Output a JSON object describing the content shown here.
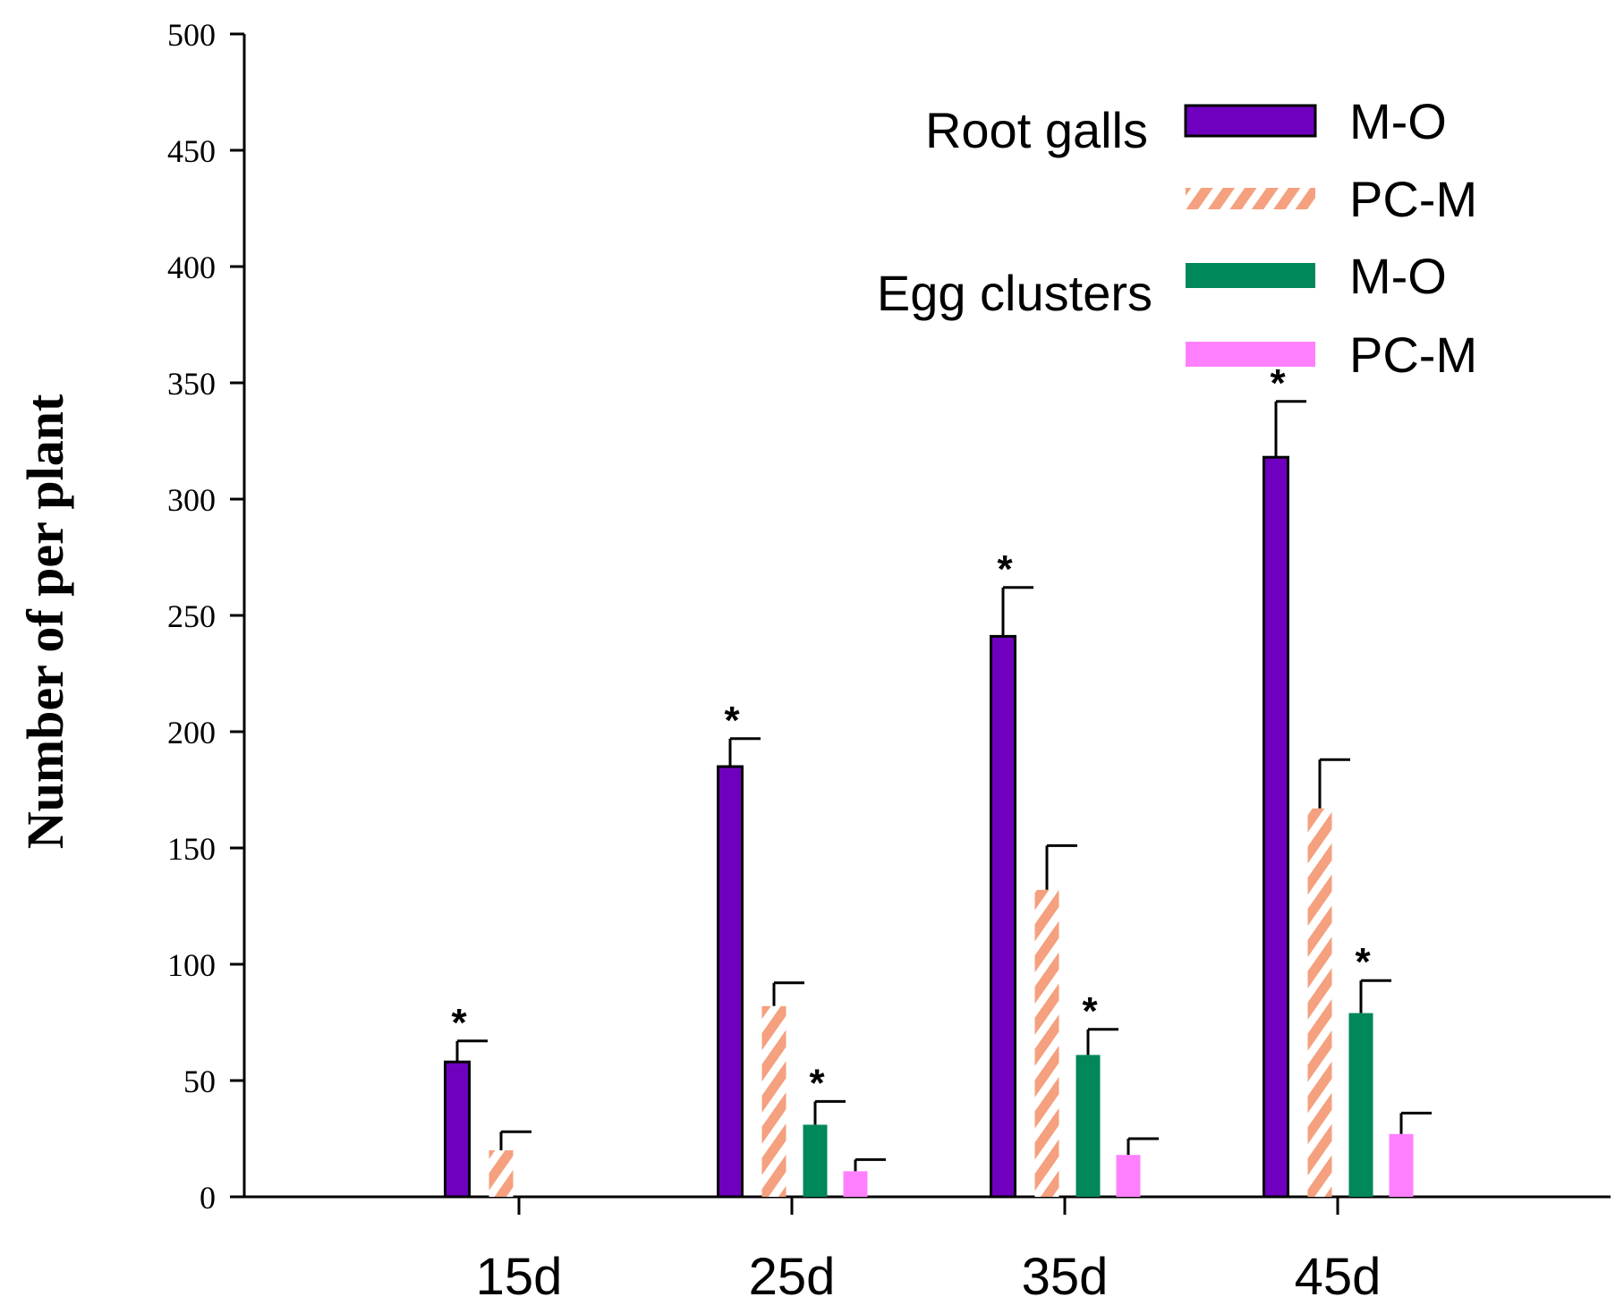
{
  "chart_data": {
    "type": "bar",
    "title": "",
    "xlabel": "",
    "ylabel": "Number of per plant",
    "ylim": [
      0,
      500
    ],
    "yticks": [
      0,
      50,
      100,
      150,
      200,
      250,
      300,
      350,
      400,
      450,
      500
    ],
    "categories": [
      "15d",
      "25d",
      "35d",
      "45d"
    ],
    "legend_groups": [
      {
        "label": "Root galls",
        "series_idx": [
          0,
          1
        ]
      },
      {
        "label": "Egg clusters",
        "series_idx": [
          2,
          3
        ]
      }
    ],
    "series": [
      {
        "name": "M-O",
        "group": "Root galls",
        "color": "#7000C0",
        "stroke": "#000000",
        "pattern": "solid",
        "values": [
          58,
          185,
          241,
          318
        ],
        "errors": [
          9,
          12,
          21,
          24
        ],
        "significant": [
          true,
          true,
          true,
          true
        ]
      },
      {
        "name": "PC-M",
        "group": "Root galls",
        "color": "#F5A07E",
        "stroke": "none",
        "pattern": "hatch",
        "values": [
          20,
          82,
          132,
          167
        ],
        "errors": [
          8,
          10,
          19,
          21
        ],
        "significant": [
          false,
          false,
          false,
          false
        ]
      },
      {
        "name": "M-O",
        "group": "Egg clusters",
        "color": "#00875A",
        "stroke": "none",
        "pattern": "solid",
        "values": [
          0,
          31,
          61,
          79
        ],
        "errors": [
          0,
          10,
          11,
          14
        ],
        "significant": [
          false,
          true,
          true,
          true
        ]
      },
      {
        "name": "PC-M",
        "group": "Egg clusters",
        "color": "#FF80FF",
        "stroke": "none",
        "pattern": "solid",
        "values": [
          0,
          11,
          18,
          27
        ],
        "errors": [
          0,
          5,
          7,
          9
        ],
        "significant": [
          false,
          false,
          false,
          false
        ]
      }
    ],
    "significance_marker": "*",
    "grid": false,
    "legend_position": "top-right"
  }
}
